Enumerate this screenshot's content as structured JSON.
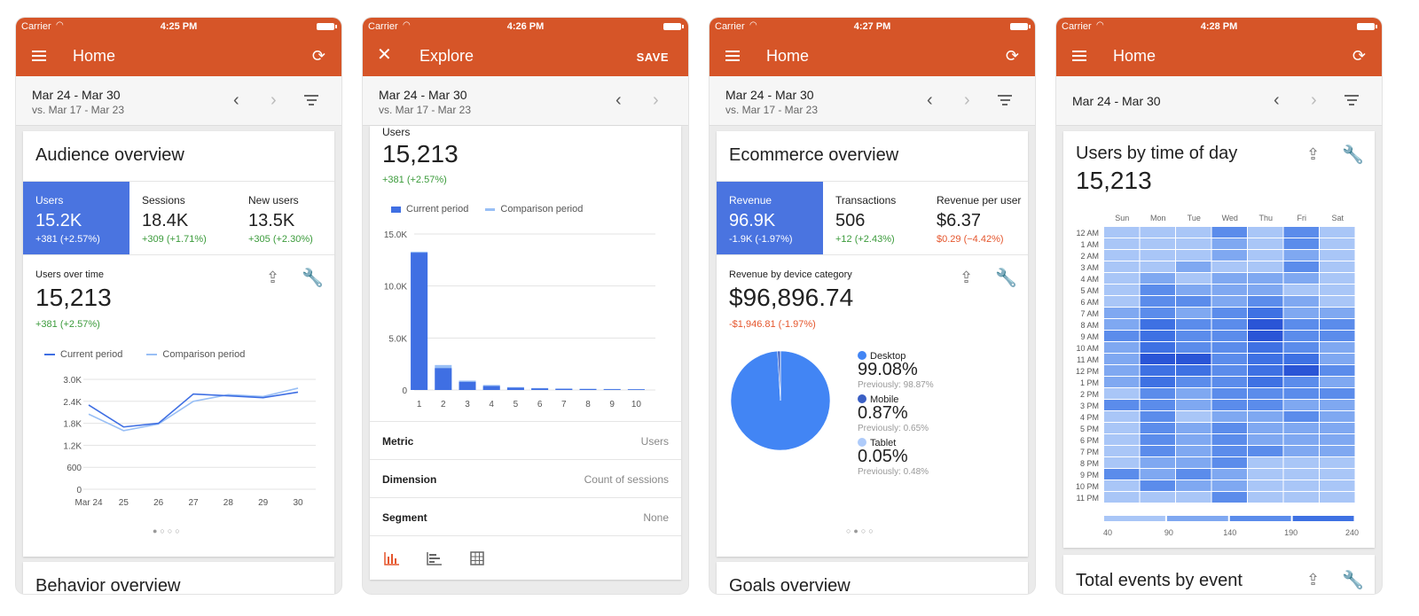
{
  "colors": {
    "appbar": "#d65528",
    "selected_metric": "#4a74e0",
    "current_series": "#3f6fe3",
    "comparison_series": "#99bff5",
    "positive": "#3b9b3b",
    "negative": "#e5562d"
  },
  "icons": {
    "menu": "menu-icon",
    "close": "close-icon",
    "account": "account-switch-icon",
    "prev": "chevron-left-icon",
    "next": "chevron-right-icon",
    "filter": "filter-icon",
    "share": "share-icon",
    "customize": "wrench-icon"
  },
  "screens": [
    {
      "status": {
        "carrier": "Carrier",
        "time": "4:25 PM"
      },
      "title": "Home",
      "date": {
        "range": "Mar 24 - Mar 30",
        "compare": "vs. Mar 17 - Mar 23"
      },
      "card_title": "Audience overview",
      "metrics": [
        {
          "label": "Users",
          "value": "15.2K",
          "change": "+381 (+2.57%)"
        },
        {
          "label": "Sessions",
          "value": "18.4K",
          "change": "+309 (+1.71%)"
        },
        {
          "label": "New users",
          "value": "13.5K",
          "change": "+305 (+2.30%)"
        }
      ],
      "sub_label": "Users over time",
      "big_value": "15,213",
      "big_change": "+381 (+2.57%)",
      "legend": [
        "Current period",
        "Comparison period"
      ],
      "next_card_title": "Behavior overview"
    },
    {
      "status": {
        "carrier": "Carrier",
        "time": "4:26 PM"
      },
      "title": "Explore",
      "save_label": "SAVE",
      "date": {
        "range": "Mar 24 - Mar 30",
        "compare": "vs. Mar 17 - Mar 23"
      },
      "sub_label": "Users",
      "big_value": "15,213",
      "big_change": "+381 (+2.57%)",
      "legend": [
        "Current period",
        "Comparison period"
      ],
      "rows": [
        {
          "label": "Metric",
          "value": "Users"
        },
        {
          "label": "Dimension",
          "value": "Count of sessions"
        },
        {
          "label": "Segment",
          "value": "None"
        }
      ],
      "tabs": [
        "bar-chart-icon",
        "horizontal-bar-chart-icon",
        "table-icon"
      ]
    },
    {
      "status": {
        "carrier": "Carrier",
        "time": "4:27 PM"
      },
      "title": "Home",
      "date": {
        "range": "Mar 24 - Mar 30",
        "compare": "vs. Mar 17 - Mar 23"
      },
      "card_title": "Ecommerce overview",
      "metrics": [
        {
          "label": "Revenue",
          "value": "96.9K",
          "change": "-1.9K (-1.97%)"
        },
        {
          "label": "Transactions",
          "value": "506",
          "change": "+12 (+2.43%)"
        },
        {
          "label": "Revenue per user",
          "value": "$6.37",
          "change": "$0.29 (−4.42%)"
        }
      ],
      "sub_label": "Revenue by device category",
      "big_value": "$96,896.74",
      "big_change": "-$1,946.81 (-1.97%)",
      "pie_legend": [
        {
          "label": "Desktop",
          "value": "99.08%",
          "previous": "Previously: 98.87%",
          "color": "#4285f4"
        },
        {
          "label": "Mobile",
          "value": "0.87%",
          "previous": "Previously: 0.65%",
          "color": "#3a5fc4"
        },
        {
          "label": "Tablet",
          "value": "0.05%",
          "previous": "Previously: 0.48%",
          "color": "#aecbfa"
        }
      ],
      "next_card_title": "Goals overview"
    },
    {
      "status": {
        "carrier": "Carrier",
        "time": "4:28 PM"
      },
      "title": "Home",
      "date": {
        "range": "Mar 24 - Mar 30"
      },
      "card_title": "Users by time of day",
      "big_value": "15,213",
      "next_card_title": "Total events by event"
    }
  ],
  "chart_data": [
    {
      "type": "line",
      "x": [
        "Mar 24",
        "25",
        "26",
        "27",
        "28",
        "29",
        "30"
      ],
      "series": [
        {
          "name": "Current period",
          "values": [
            2300,
            1700,
            1800,
            2600,
            2550,
            2500,
            2650
          ]
        },
        {
          "name": "Comparison period",
          "values": [
            2050,
            1600,
            1780,
            2400,
            2580,
            2530,
            2760
          ]
        }
      ],
      "yticks": [
        "3.0K",
        "2.4K",
        "1.8K",
        "1.2K",
        "600",
        "0"
      ],
      "ylim": [
        0,
        3000
      ]
    },
    {
      "type": "bar",
      "categories": [
        "1",
        "2",
        "3",
        "4",
        "5",
        "6",
        "7",
        "8",
        "9",
        "10"
      ],
      "series": [
        {
          "name": "Current period",
          "values": [
            13200,
            2100,
            780,
            380,
            220,
            150,
            110,
            90,
            70,
            60
          ]
        },
        {
          "name": "Comparison period",
          "values": [
            13300,
            2400,
            900,
            480,
            280,
            190,
            140,
            120,
            100,
            90
          ]
        }
      ],
      "yticks": [
        "15.0K",
        "10.0K",
        "5.0K",
        "0"
      ],
      "ylim": [
        0,
        15000
      ]
    },
    {
      "type": "pie",
      "categories": [
        "Desktop",
        "Mobile",
        "Tablet"
      ],
      "values": [
        99.08,
        0.87,
        0.05
      ]
    },
    {
      "type": "heatmap",
      "x": [
        "Sun",
        "Mon",
        "Tue",
        "Wed",
        "Thu",
        "Fri",
        "Sat"
      ],
      "y": [
        "12 AM",
        "1 AM",
        "2 AM",
        "3 AM",
        "4 AM",
        "5 AM",
        "6 AM",
        "7 AM",
        "8 AM",
        "9 AM",
        "10 AM",
        "11 AM",
        "12 PM",
        "1 PM",
        "2 PM",
        "3 PM",
        "4 PM",
        "5 PM",
        "6 PM",
        "7 PM",
        "8 PM",
        "9 PM",
        "10 PM",
        "11 PM"
      ],
      "values": [
        [
          1,
          1,
          1,
          3,
          1,
          3,
          1
        ],
        [
          1,
          1,
          1,
          2,
          1,
          3,
          1
        ],
        [
          1,
          1,
          1,
          2,
          1,
          2,
          1
        ],
        [
          1,
          1,
          2,
          1,
          1,
          3,
          1
        ],
        [
          1,
          2,
          1,
          2,
          2,
          2,
          1
        ],
        [
          1,
          3,
          2,
          2,
          2,
          1,
          1
        ],
        [
          1,
          3,
          3,
          2,
          3,
          2,
          1
        ],
        [
          2,
          3,
          2,
          3,
          4,
          2,
          2
        ],
        [
          2,
          4,
          3,
          3,
          5,
          3,
          3
        ],
        [
          3,
          4,
          3,
          3,
          5,
          3,
          3
        ],
        [
          2,
          4,
          3,
          3,
          4,
          3,
          2
        ],
        [
          2,
          5,
          5,
          3,
          4,
          4,
          2
        ],
        [
          2,
          4,
          4,
          3,
          4,
          5,
          3
        ],
        [
          2,
          4,
          3,
          3,
          4,
          3,
          2
        ],
        [
          1,
          3,
          2,
          3,
          3,
          3,
          3
        ],
        [
          3,
          3,
          2,
          3,
          3,
          2,
          2
        ],
        [
          1,
          3,
          1,
          2,
          2,
          3,
          2
        ],
        [
          1,
          3,
          2,
          3,
          2,
          2,
          2
        ],
        [
          1,
          3,
          2,
          3,
          2,
          2,
          2
        ],
        [
          1,
          3,
          2,
          3,
          3,
          2,
          2
        ],
        [
          1,
          2,
          2,
          3,
          1,
          1,
          1
        ],
        [
          3,
          2,
          3,
          2,
          1,
          1,
          1
        ],
        [
          1,
          3,
          2,
          2,
          1,
          1,
          1
        ],
        [
          1,
          1,
          1,
          3,
          1,
          1,
          1
        ]
      ],
      "scale": [
        "40",
        "90",
        "140",
        "190",
        "240"
      ]
    }
  ]
}
